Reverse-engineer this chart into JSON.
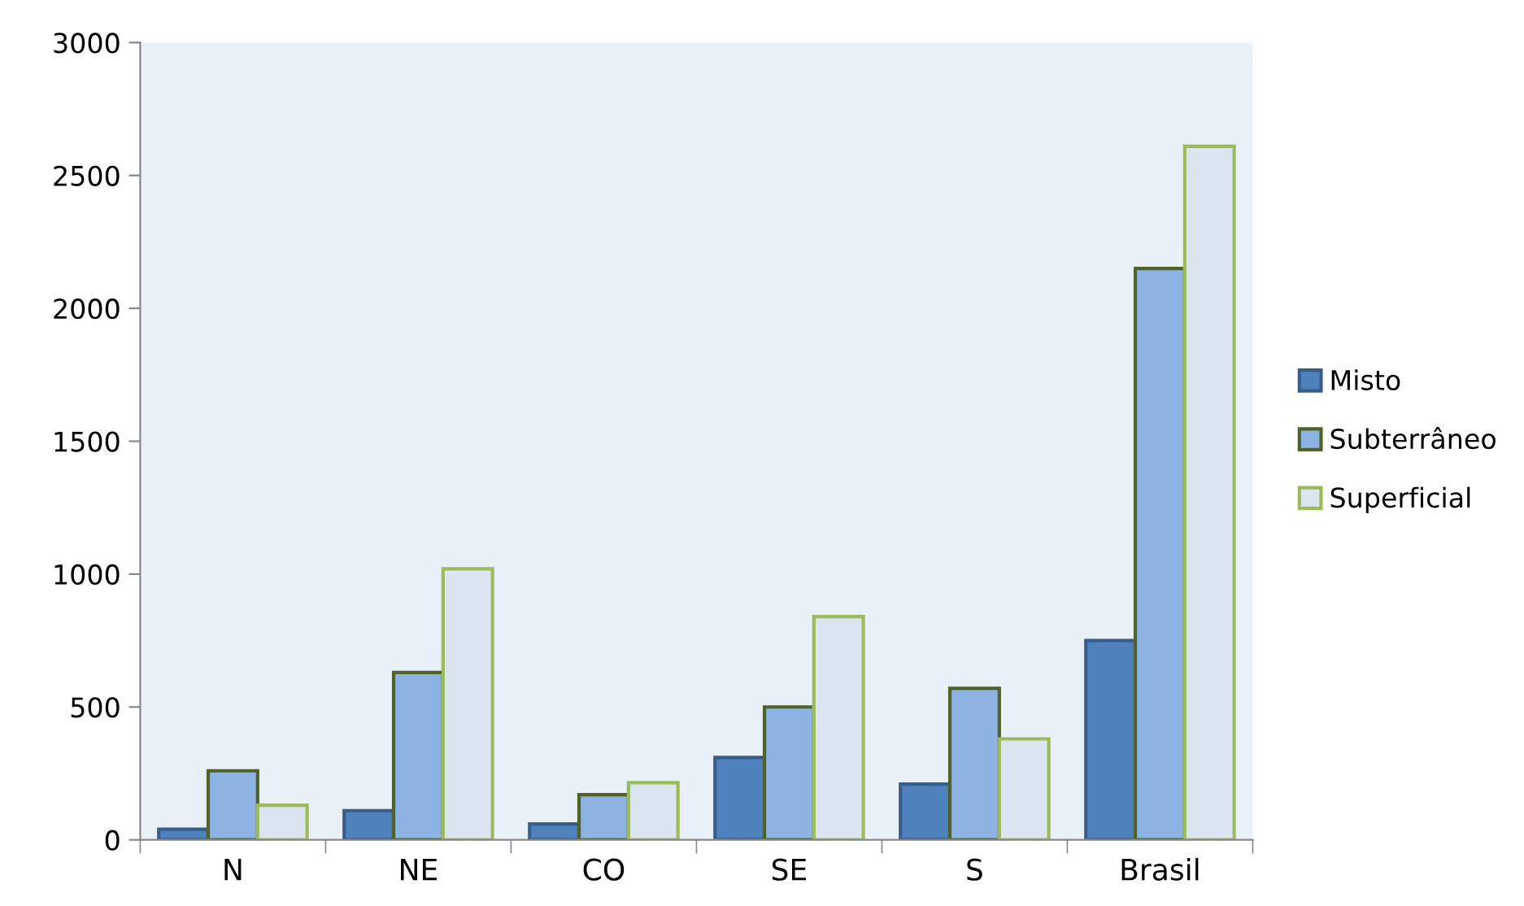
{
  "chart_data": {
    "type": "bar",
    "categories": [
      "N",
      "NE",
      "CO",
      "SE",
      "S",
      "Brasil"
    ],
    "series": [
      {
        "name": "Misto",
        "color": "#4f81bd",
        "values": [
          40,
          110,
          60,
          310,
          210,
          750
        ]
      },
      {
        "name": "Subterrâneo",
        "color": "#8db3e2",
        "values": [
          260,
          630,
          170,
          500,
          570,
          2150
        ]
      },
      {
        "name": "Superficial",
        "color": "#dbe5f1",
        "values": [
          130,
          1020,
          215,
          840,
          380,
          2610
        ]
      }
    ],
    "ylim": [
      0,
      3000
    ],
    "yticks": [
      0,
      500,
      1000,
      1500,
      2000,
      2500,
      3000
    ],
    "grid": false,
    "legend": "right"
  }
}
